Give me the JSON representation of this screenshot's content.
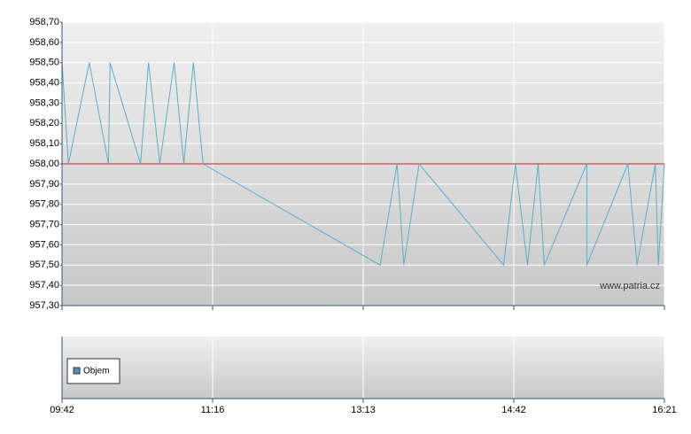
{
  "chart_data": {
    "type": "line",
    "x": [
      582,
      586,
      599,
      611,
      612,
      631,
      636,
      643,
      652,
      658,
      664,
      670,
      803,
      813,
      817,
      826,
      876,
      883,
      891,
      898,
      902,
      930,
      930,
      957,
      963,
      975,
      977,
      981
    ],
    "series": [
      {
        "name": null,
        "color": "#5aaed0",
        "values": [
          958.5,
          958.0,
          958.5,
          958.0,
          958.5,
          958.0,
          958.5,
          958.0,
          958.5,
          958.0,
          958.5,
          958.0,
          957.5,
          958.0,
          957.5,
          958.0,
          957.5,
          958.0,
          957.5,
          958.0,
          957.5,
          958.0,
          957.5,
          958.0,
          957.5,
          958.0,
          957.5,
          958.0
        ]
      }
    ],
    "reference_line": {
      "value": 958.0,
      "color": "#d02020"
    },
    "xlim": [
      582,
      981
    ],
    "xticks": [
      {
        "value": 582,
        "label": "09:42"
      },
      {
        "value": 676,
        "label": "11:16"
      },
      {
        "value": 793,
        "label": "13:13"
      },
      {
        "value": 882,
        "label": "14:42"
      },
      {
        "value": 981,
        "label": "16:21"
      }
    ],
    "ylim": [
      957.3,
      958.7
    ],
    "yticks": [
      {
        "value": 957.3,
        "label": "957,30"
      },
      {
        "value": 957.4,
        "label": "957,40"
      },
      {
        "value": 957.5,
        "label": "957,50"
      },
      {
        "value": 957.6,
        "label": "957,60"
      },
      {
        "value": 957.7,
        "label": "957,70"
      },
      {
        "value": 957.8,
        "label": "957,80"
      },
      {
        "value": 957.9,
        "label": "957,90"
      },
      {
        "value": 958.0,
        "label": "958,00"
      },
      {
        "value": 958.1,
        "label": "958,10"
      },
      {
        "value": 958.2,
        "label": "958,20"
      },
      {
        "value": 958.3,
        "label": "958,30"
      },
      {
        "value": 958.4,
        "label": "958,40"
      },
      {
        "value": 958.5,
        "label": "958,50"
      },
      {
        "value": 958.6,
        "label": "958,60"
      },
      {
        "value": 958.7,
        "label": "958,70"
      }
    ],
    "grid": true,
    "watermark": "www.patria.cz",
    "volume_panel": {
      "legend": "Objem",
      "color": "#4a90c0"
    }
  }
}
